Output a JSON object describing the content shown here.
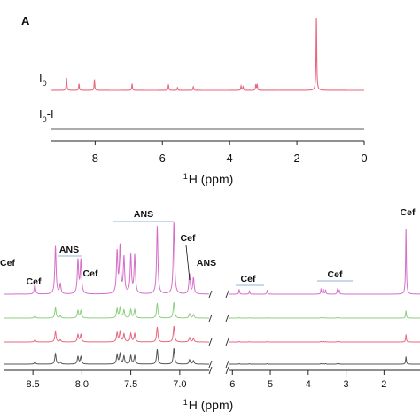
{
  "panel_label": "A",
  "chart_data": [
    {
      "type": "line",
      "panel": "A",
      "xlabel_sup": "1",
      "xlabel": "H (ppm)",
      "xlim": [
        0,
        9.3
      ],
      "x_reversed": true,
      "x_ticks": [
        8,
        6,
        4,
        2,
        0
      ],
      "grid": false,
      "series": [
        {
          "name": "I0",
          "color": "#e8677e",
          "peaks": [
            {
              "x": 8.85,
              "h": 0.17
            },
            {
              "x": 8.48,
              "h": 0.09
            },
            {
              "x": 8.02,
              "h": 0.15
            },
            {
              "x": 6.9,
              "h": 0.09
            },
            {
              "x": 5.82,
              "h": 0.08
            },
            {
              "x": 5.55,
              "h": 0.04
            },
            {
              "x": 5.08,
              "h": 0.05
            },
            {
              "x": 3.66,
              "h": 0.06
            },
            {
              "x": 3.6,
              "h": 0.05
            },
            {
              "x": 3.22,
              "h": 0.08
            },
            {
              "x": 3.18,
              "h": 0.07
            },
            {
              "x": 1.42,
              "h": 1.0
            }
          ]
        },
        {
          "name": "I0-I",
          "color": "#7b7b7b",
          "peaks": []
        }
      ]
    },
    {
      "type": "line",
      "panel": "zoom",
      "xlabel_sup": "1",
      "xlabel": "H (ppm)",
      "segments": [
        {
          "xlim": [
            8.8,
            6.7
          ],
          "ticks": [
            "8.5",
            "8.0",
            "7.5",
            "7.0"
          ],
          "tick_values": [
            8.5,
            8.0,
            7.5,
            7.0
          ]
        },
        {
          "xlim": [
            6.1,
            1.05
          ],
          "ticks": [
            "6",
            "5",
            "4",
            "3",
            "2"
          ],
          "tick_values": [
            6,
            5,
            4,
            3,
            2
          ]
        }
      ],
      "grid": false,
      "traces": [
        {
          "color": "#d56fc8",
          "scale": 1.0
        },
        {
          "color": "#8ccf7e",
          "scale": 0.22
        },
        {
          "color": "#e8677e",
          "scale": 0.22
        },
        {
          "color": "#555555",
          "scale": 0.22
        }
      ],
      "peaks_left": [
        {
          "x": 8.48,
          "h": 0.12
        },
        {
          "x": 8.27,
          "h": 0.6
        },
        {
          "x": 8.22,
          "h": 0.12
        },
        {
          "x": 8.04,
          "h": 0.42
        },
        {
          "x": 8.01,
          "h": 0.42
        },
        {
          "x": 7.64,
          "h": 0.52
        },
        {
          "x": 7.61,
          "h": 0.58
        },
        {
          "x": 7.57,
          "h": 0.45
        },
        {
          "x": 7.5,
          "h": 0.48
        },
        {
          "x": 7.46,
          "h": 0.48
        },
        {
          "x": 7.23,
          "h": 0.85
        },
        {
          "x": 7.06,
          "h": 0.9
        },
        {
          "x": 6.9,
          "h": 0.25
        },
        {
          "x": 6.86,
          "h": 0.2
        }
      ],
      "peaks_right": [
        {
          "x": 5.82,
          "h": 0.07
        },
        {
          "x": 5.55,
          "h": 0.05
        },
        {
          "x": 5.08,
          "h": 0.06
        },
        {
          "x": 3.66,
          "h": 0.08
        },
        {
          "x": 3.6,
          "h": 0.07
        },
        {
          "x": 3.54,
          "h": 0.06
        },
        {
          "x": 3.23,
          "h": 0.07
        },
        {
          "x": 3.18,
          "h": 0.06
        },
        {
          "x": 1.42,
          "h": 1.0
        }
      ],
      "annotations": [
        {
          "text": "Cef",
          "x": 8.55
        },
        {
          "text": "Cef",
          "x": 8.48
        },
        {
          "text": "ANS",
          "x": 8.15
        },
        {
          "text": "Cef",
          "x": 7.97
        },
        {
          "text": "ANS",
          "x": 7.35
        },
        {
          "text": "Cef",
          "x": 6.98
        },
        {
          "text": "ANS",
          "x": 6.83
        },
        {
          "text": "Cef",
          "x": 5.6
        },
        {
          "text": "Cef",
          "x": 3.4
        },
        {
          "text": "Cef",
          "x": 1.42
        }
      ]
    }
  ]
}
